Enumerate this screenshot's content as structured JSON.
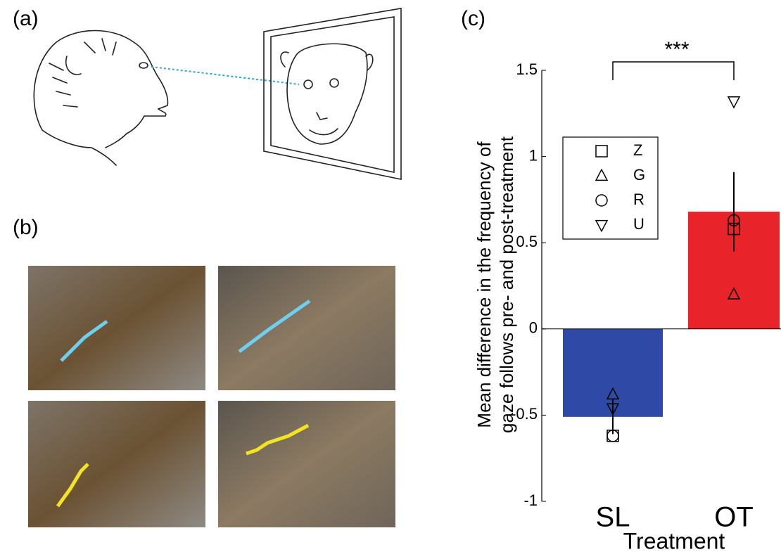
{
  "panels": {
    "a": "(a)",
    "b": "(b)",
    "c": "(c)"
  },
  "chart_data": {
    "type": "bar",
    "categories": [
      "SL",
      "OT"
    ],
    "values": [
      -0.51,
      0.68
    ],
    "errors": [
      0.1,
      0.23
    ],
    "colors": [
      "#2e49a6",
      "#e8232a"
    ],
    "series": [
      {
        "name": "Z",
        "marker": "square",
        "values": [
          -0.62,
          0.58
        ]
      },
      {
        "name": "G",
        "marker": "triangle-up",
        "values": [
          -0.38,
          0.2
        ]
      },
      {
        "name": "R",
        "marker": "circle",
        "values": [
          -0.62,
          0.63
        ]
      },
      {
        "name": "U",
        "marker": "triangle-down",
        "values": [
          -0.46,
          1.32
        ]
      }
    ],
    "ylim": [
      -1,
      1.5
    ],
    "yticks": [
      -1,
      -0.5,
      0,
      0.5,
      1,
      1.5
    ],
    "ylabel": [
      "Mean difference in the frequency of",
      "gaze follows pre- and post-treatment"
    ],
    "xlabel": "Treatment",
    "annotation": "***"
  }
}
